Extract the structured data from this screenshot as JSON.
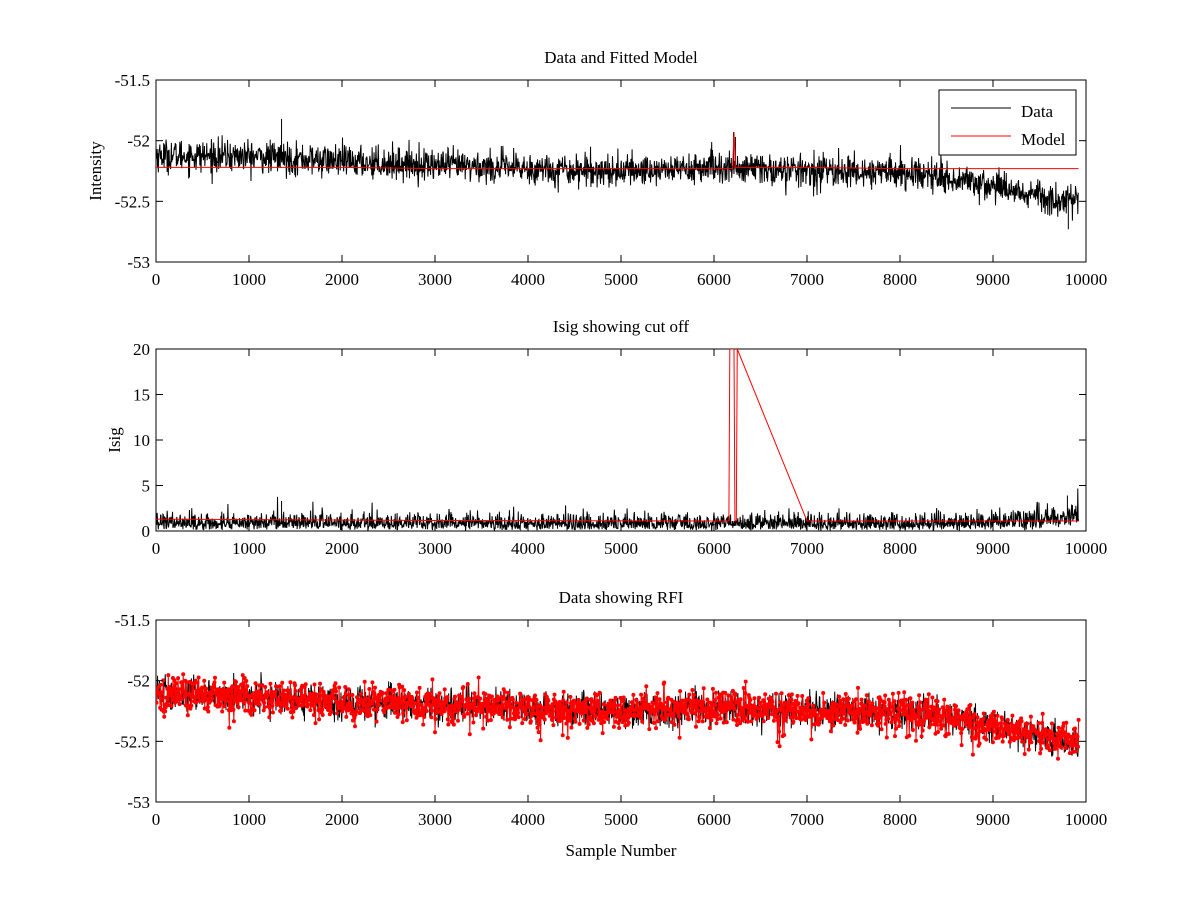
{
  "chart_data": [
    {
      "id": "p1",
      "type": "line",
      "title": "Data and Fitted Model",
      "xlabel": "",
      "ylabel": "Intensity",
      "xlim": [
        0,
        10000
      ],
      "ylim": [
        -53,
        -51.5
      ],
      "xticks": [
        0,
        1000,
        2000,
        3000,
        4000,
        5000,
        6000,
        7000,
        8000,
        9000,
        10000
      ],
      "xtick_labels": [
        "0",
        "1000",
        "2000",
        "3000",
        "4000",
        "5000",
        "6000",
        "7000",
        "8000",
        "9000",
        "10000"
      ],
      "yticks": [
        -53,
        -52.5,
        -52,
        -51.5
      ],
      "ytick_labels": [
        "-53",
        "-52.5",
        "-52",
        "-51.5"
      ],
      "legend_position": "top-right",
      "series": [
        {
          "name": "Data",
          "color": "#000000",
          "style": "noisy-line",
          "x_range": [
            0,
            9920
          ],
          "trend": {
            "x": [
              0,
              1000,
              2000,
              3000,
              4000,
              5000,
              6000,
              7000,
              8000,
              8500,
              9000,
              9500,
              9920
            ],
            "y": [
              -52.12,
              -52.13,
              -52.17,
              -52.2,
              -52.23,
              -52.25,
              -52.22,
              -52.25,
              -52.26,
              -52.3,
              -52.37,
              -52.45,
              -52.52
            ]
          },
          "noise_amplitude": 0.12,
          "spikes": [
            {
              "x": 1350,
              "y": -51.82
            },
            {
              "x": 6210,
              "y": -51.93
            },
            {
              "x": 6230,
              "y": -51.97
            },
            {
              "x": 9810,
              "y": -52.73
            }
          ]
        },
        {
          "name": "Model",
          "color": "#ff0000",
          "style": "line",
          "x": [
            0,
            1000,
            2000,
            3000,
            4000,
            5000,
            6000,
            6200,
            6215,
            6230,
            7000,
            8000,
            9000,
            9920
          ],
          "y": [
            -52.22,
            -52.22,
            -52.22,
            -52.23,
            -52.23,
            -52.23,
            -52.23,
            -52.23,
            -51.93,
            -52.22,
            -52.22,
            -52.23,
            -52.23,
            -52.23
          ]
        }
      ]
    },
    {
      "id": "p2",
      "type": "line",
      "title": "Isig showing cut off",
      "xlabel": "",
      "ylabel": "Isig",
      "xlim": [
        0,
        10000
      ],
      "ylim": [
        0,
        20
      ],
      "xticks": [
        0,
        1000,
        2000,
        3000,
        4000,
        5000,
        6000,
        7000,
        8000,
        9000,
        10000
      ],
      "xtick_labels": [
        "0",
        "1000",
        "2000",
        "3000",
        "4000",
        "5000",
        "6000",
        "7000",
        "8000",
        "9000",
        "10000"
      ],
      "yticks": [
        0,
        5,
        10,
        15,
        20
      ],
      "ytick_labels": [
        "0",
        "5",
        "10",
        "15",
        "20"
      ],
      "series": [
        {
          "name": "",
          "color": "#000000",
          "style": "noisy-isig",
          "x_range": [
            0,
            9920
          ],
          "trend": {
            "x": [
              0,
              1000,
              2000,
              3000,
              4000,
              5000,
              6000,
              7000,
              8000,
              8800,
              9300,
              9920
            ],
            "y": [
              0.8,
              0.75,
              0.7,
              0.6,
              0.55,
              0.5,
              0.55,
              0.55,
              0.55,
              0.7,
              1.4,
              1.9
            ]
          },
          "noise_amplitude": 1.4,
          "spikes": [
            {
              "x": 1350,
              "y": 3.3
            },
            {
              "x": 9800,
              "y": 3.9
            }
          ]
        },
        {
          "name": "",
          "color": "#ff0000",
          "style": "line",
          "x": [
            0,
            3000,
            6000,
            6160,
            6170,
            6215,
            6225,
            6240,
            6250,
            7000,
            9000,
            9920
          ],
          "y": [
            1.3,
            1.15,
            1.1,
            1.1,
            20,
            20,
            1.1,
            1.1,
            20,
            1.1,
            1.1,
            1.1
          ]
        }
      ]
    },
    {
      "id": "p3",
      "type": "line",
      "title": "Data showing RFI",
      "xlabel": "Sample Number",
      "ylabel": "",
      "xlim": [
        0,
        10000
      ],
      "ylim": [
        -53,
        -51.5
      ],
      "xticks": [
        0,
        1000,
        2000,
        3000,
        4000,
        5000,
        6000,
        7000,
        8000,
        9000,
        10000
      ],
      "xtick_labels": [
        "0",
        "1000",
        "2000",
        "3000",
        "4000",
        "5000",
        "6000",
        "7000",
        "8000",
        "9000",
        "10000"
      ],
      "yticks": [
        -53,
        -52.5,
        -52,
        -51.5
      ],
      "ytick_labels": [
        "-53",
        "-52.5",
        "-52",
        "-51.5"
      ],
      "series": [
        {
          "name": "",
          "color": "#000000",
          "style": "noisy-line",
          "x_range": [
            0,
            9920
          ],
          "trend": {
            "x": [
              0,
              1000,
              2000,
              3000,
              4000,
              5000,
              6000,
              7000,
              8000,
              8500,
              9000,
              9500,
              9920
            ],
            "y": [
              -52.12,
              -52.13,
              -52.17,
              -52.2,
              -52.23,
              -52.25,
              -52.22,
              -52.25,
              -52.26,
              -52.3,
              -52.37,
              -52.45,
              -52.52
            ]
          },
          "noise_amplitude": 0.12
        },
        {
          "name": "",
          "color": "#ff0000",
          "style": "markers",
          "marker": "dot",
          "x_range": [
            0,
            9920
          ],
          "trend": {
            "x": [
              0,
              1000,
              2000,
              3000,
              4000,
              5000,
              6000,
              7000,
              8000,
              8500,
              9000,
              9500,
              9920
            ],
            "y": [
              -52.12,
              -52.13,
              -52.17,
              -52.2,
              -52.23,
              -52.25,
              -52.22,
              -52.25,
              -52.26,
              -52.3,
              -52.37,
              -52.45,
              -52.52
            ]
          },
          "noise_amplitude": 0.14
        }
      ]
    }
  ]
}
